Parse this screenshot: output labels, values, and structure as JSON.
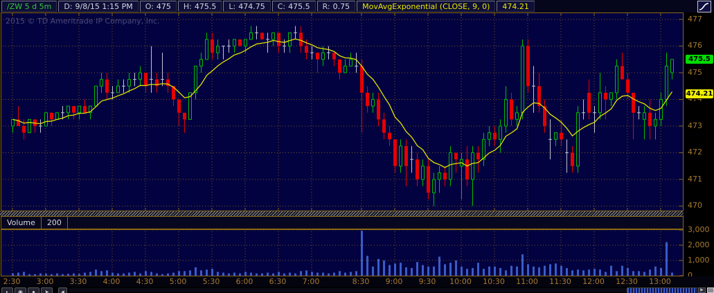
{
  "header": {
    "symbol": "/ZW 5 d 5m",
    "fields": [
      {
        "label": "D:",
        "value": "9/8/15 1:15 PM"
      },
      {
        "label": "O:",
        "value": "475"
      },
      {
        "label": "H:",
        "value": "475.5"
      },
      {
        "label": "L:",
        "value": "474.75"
      },
      {
        "label": "C:",
        "value": "475.5"
      },
      {
        "label": "R:",
        "value": "0.75"
      }
    ],
    "study": "MovAvgExponential (CLOSE, 9, 0)",
    "study_value": "474.21"
  },
  "copyright": "2015 © TD Ameritrade IP Company, Inc.",
  "price_axis": {
    "labels": [
      "477",
      "476",
      "475",
      "474",
      "473",
      "472",
      "471",
      "470"
    ],
    "last_badge": "475.5",
    "ma_badge": "474.21"
  },
  "volume_pane": {
    "label": "Volume",
    "value": "200",
    "axis_labels": [
      "3,000",
      "2,000",
      "1,000",
      "0"
    ]
  },
  "time_axis": [
    "2:30",
    "3:00",
    "3:30",
    "4:00",
    "4:30",
    "5:00",
    "5:30",
    "6:00",
    "6:30",
    "7:00",
    "8:30",
    "9:00",
    "9:30",
    "10:00",
    "10:30",
    "11:00",
    "11:30",
    "12:00",
    "12:30",
    "13:00"
  ],
  "colors": {
    "background": "#020240",
    "grid": "#9a6e10",
    "frame": "#8a6914",
    "axis_text": "#A97B2F",
    "candle_up": "#00BE00",
    "candle_down": "#E60000",
    "candle_neutral": "#C4C4D4",
    "ema_line": "#E2E200",
    "volume_bar": "#3A5CC8",
    "last_price_badge": "#00DC00",
    "ma_badge": "#F0F000",
    "symbol_text": "#33CC33"
  },
  "chart_data": {
    "type": "candlestick",
    "symbol": "/ZW",
    "interval": "5m",
    "session_break": {
      "after": "7:40",
      "resume": "8:30"
    },
    "y_axis": {
      "min": 470,
      "max": 477
    },
    "volume_axis": {
      "min": 0,
      "max": 3000
    },
    "overlays": [
      {
        "type": "ema",
        "label": "MovAvgExponential (CLOSE, 9, 0)",
        "period": 9,
        "last_value": 474.21,
        "color": "#E2E200"
      }
    ],
    "bars": [
      [
        "2:30",
        473.0,
        473.25,
        472.75,
        473.25,
        150,
        "G"
      ],
      [
        "2:35",
        473.25,
        473.75,
        473.0,
        473.0,
        200,
        "R"
      ],
      [
        "2:40",
        473.0,
        473.25,
        472.5,
        472.75,
        250,
        "R"
      ],
      [
        "2:45",
        472.75,
        473.25,
        472.75,
        473.25,
        100,
        "G"
      ],
      [
        "2:50",
        473.25,
        473.25,
        472.75,
        473.0,
        100,
        "R"
      ],
      [
        "2:55",
        473.0,
        473.25,
        472.75,
        473.0,
        150,
        "W"
      ],
      [
        "3:00",
        473.0,
        473.5,
        473.0,
        473.5,
        120,
        "G"
      ],
      [
        "3:05",
        473.5,
        473.5,
        473.0,
        473.25,
        100,
        "R"
      ],
      [
        "3:10",
        473.25,
        473.5,
        473.25,
        473.5,
        150,
        "G"
      ],
      [
        "3:15",
        473.5,
        473.75,
        473.25,
        473.5,
        100,
        "W"
      ],
      [
        "3:20",
        473.5,
        473.75,
        473.25,
        473.75,
        120,
        "G"
      ],
      [
        "3:25",
        473.75,
        473.75,
        473.25,
        473.5,
        150,
        "R"
      ],
      [
        "3:30",
        473.5,
        473.75,
        473.25,
        473.75,
        100,
        "G"
      ],
      [
        "3:35",
        473.75,
        474.0,
        473.5,
        473.5,
        200,
        "R"
      ],
      [
        "3:40",
        473.5,
        473.75,
        473.25,
        473.75,
        250,
        "G"
      ],
      [
        "3:45",
        473.75,
        474.5,
        473.75,
        474.5,
        400,
        "G"
      ],
      [
        "3:50",
        474.5,
        475.0,
        474.25,
        474.75,
        300,
        "G"
      ],
      [
        "3:55",
        474.75,
        475.0,
        474.0,
        474.25,
        350,
        "R"
      ],
      [
        "4:00",
        474.25,
        474.5,
        474.0,
        474.25,
        200,
        "W"
      ],
      [
        "4:05",
        474.25,
        474.75,
        474.25,
        474.5,
        150,
        "G"
      ],
      [
        "4:10",
        474.5,
        474.75,
        474.25,
        474.5,
        150,
        "W"
      ],
      [
        "4:15",
        474.5,
        475.0,
        474.25,
        474.75,
        200,
        "G"
      ],
      [
        "4:20",
        474.75,
        475.0,
        474.5,
        474.75,
        250,
        "W"
      ],
      [
        "4:25",
        474.75,
        475.25,
        474.5,
        475.0,
        150,
        "G"
      ],
      [
        "4:30",
        475.0,
        475.0,
        474.25,
        474.5,
        300,
        "R"
      ],
      [
        "4:35",
        474.75,
        476.0,
        474.25,
        474.75,
        250,
        "W"
      ],
      [
        "4:40",
        474.75,
        475.0,
        474.25,
        474.5,
        150,
        "R"
      ],
      [
        "4:45",
        474.75,
        475.75,
        474.5,
        474.75,
        100,
        "W"
      ],
      [
        "4:50",
        474.75,
        475.0,
        474.25,
        474.5,
        150,
        "R"
      ],
      [
        "4:55",
        474.5,
        474.5,
        473.75,
        474.0,
        200,
        "R"
      ],
      [
        "5:00",
        474.0,
        474.0,
        473.0,
        473.5,
        300,
        "R"
      ],
      [
        "5:05",
        473.5,
        473.5,
        472.75,
        473.25,
        300,
        "R"
      ],
      [
        "5:10",
        473.25,
        474.25,
        473.25,
        474.25,
        350,
        "G"
      ],
      [
        "5:15",
        474.25,
        475.25,
        474.0,
        475.25,
        550,
        "G"
      ],
      [
        "5:20",
        475.25,
        475.75,
        475.0,
        475.5,
        350,
        "G"
      ],
      [
        "5:25",
        475.5,
        476.5,
        475.5,
        476.25,
        400,
        "G"
      ],
      [
        "5:30",
        476.25,
        476.5,
        475.5,
        475.75,
        450,
        "R"
      ],
      [
        "5:35",
        475.75,
        476.25,
        475.5,
        476.0,
        250,
        "G"
      ],
      [
        "5:40",
        476.0,
        476.0,
        475.5,
        476.0,
        200,
        "W"
      ],
      [
        "5:45",
        476.0,
        476.25,
        475.75,
        476.0,
        150,
        "W"
      ],
      [
        "5:50",
        476.0,
        476.25,
        475.75,
        476.25,
        200,
        "G"
      ],
      [
        "5:55",
        476.25,
        476.25,
        476.0,
        476.0,
        150,
        "R"
      ],
      [
        "6:00",
        476.0,
        476.25,
        475.75,
        476.25,
        250,
        "G"
      ],
      [
        "6:05",
        476.25,
        476.75,
        476.25,
        476.5,
        200,
        "G"
      ],
      [
        "6:10",
        476.5,
        476.75,
        476.25,
        476.5,
        150,
        "W"
      ],
      [
        "6:15",
        476.5,
        476.5,
        476.25,
        476.25,
        150,
        "R"
      ],
      [
        "6:20",
        476.25,
        476.5,
        475.75,
        476.25,
        200,
        "W"
      ],
      [
        "6:25",
        476.25,
        476.5,
        476.0,
        476.5,
        150,
        "G"
      ],
      [
        "6:30",
        476.5,
        476.5,
        475.75,
        476.0,
        250,
        "R"
      ],
      [
        "6:35",
        476.0,
        476.25,
        475.75,
        476.0,
        150,
        "W"
      ],
      [
        "6:40",
        476.0,
        476.5,
        475.75,
        476.5,
        200,
        "G"
      ],
      [
        "6:45",
        476.5,
        476.75,
        476.25,
        476.5,
        150,
        "W"
      ],
      [
        "6:50",
        476.5,
        476.75,
        475.75,
        476.0,
        300,
        "R"
      ],
      [
        "6:55",
        476.0,
        476.25,
        475.5,
        475.75,
        350,
        "R"
      ],
      [
        "7:00",
        475.75,
        476.0,
        475.5,
        475.75,
        250,
        "W"
      ],
      [
        "7:05",
        475.75,
        475.75,
        475.0,
        475.5,
        200,
        "R"
      ],
      [
        "7:10",
        475.5,
        476.0,
        475.25,
        475.75,
        200,
        "G"
      ],
      [
        "7:15",
        475.75,
        476.0,
        475.5,
        475.75,
        150,
        "W"
      ],
      [
        "7:20",
        475.75,
        475.75,
        475.25,
        475.5,
        200,
        "R"
      ],
      [
        "7:25",
        475.5,
        475.5,
        474.75,
        475.0,
        300,
        "R"
      ],
      [
        "7:30",
        475.0,
        475.5,
        475.0,
        475.25,
        200,
        "G"
      ],
      [
        "7:35",
        475.25,
        475.75,
        475.25,
        475.5,
        250,
        "G"
      ],
      [
        "7:40",
        475.25,
        475.75,
        475.0,
        475.25,
        300,
        "W"
      ],
      [
        "8:30",
        475.25,
        475.5,
        472.75,
        474.25,
        2950,
        "R"
      ],
      [
        "8:35",
        474.25,
        474.5,
        473.5,
        473.75,
        1300,
        "R"
      ],
      [
        "8:40",
        473.75,
        474.25,
        473.5,
        474.0,
        600,
        "G"
      ],
      [
        "8:45",
        474.0,
        474.25,
        473.0,
        473.25,
        1100,
        "R"
      ],
      [
        "8:50",
        473.25,
        473.5,
        472.5,
        472.75,
        1000,
        "R"
      ],
      [
        "8:55",
        472.75,
        473.0,
        472.25,
        472.5,
        700,
        "R"
      ],
      [
        "9:00",
        472.5,
        472.5,
        471.25,
        471.5,
        800,
        "R"
      ],
      [
        "9:05",
        471.5,
        472.5,
        471.25,
        472.25,
        850,
        "G"
      ],
      [
        "9:10",
        472.25,
        472.5,
        470.75,
        471.5,
        550,
        "R"
      ],
      [
        "9:15",
        471.75,
        472.25,
        471.25,
        471.75,
        500,
        "W"
      ],
      [
        "9:20",
        471.75,
        472.0,
        470.75,
        471.0,
        900,
        "R"
      ],
      [
        "9:25",
        471.0,
        471.75,
        470.75,
        471.5,
        700,
        "G"
      ],
      [
        "9:30",
        471.5,
        471.75,
        470.25,
        470.5,
        600,
        "R"
      ],
      [
        "9:35",
        470.5,
        471.25,
        470.0,
        471.0,
        600,
        "G"
      ],
      [
        "9:40",
        471.0,
        471.5,
        470.5,
        471.25,
        1250,
        "G"
      ],
      [
        "9:45",
        471.25,
        471.5,
        470.75,
        471.0,
        750,
        "R"
      ],
      [
        "9:50",
        471.0,
        472.25,
        470.75,
        472.0,
        850,
        "G"
      ],
      [
        "9:55",
        472.0,
        472.0,
        471.25,
        471.75,
        1000,
        "R"
      ],
      [
        "10:00",
        471.5,
        472.0,
        470.25,
        471.75,
        600,
        "G"
      ],
      [
        "10:05",
        471.75,
        472.25,
        470.75,
        471.0,
        450,
        "R"
      ],
      [
        "10:10",
        471.0,
        472.25,
        470.0,
        472.0,
        500,
        "G"
      ],
      [
        "10:15",
        472.0,
        472.25,
        471.25,
        471.75,
        850,
        "R"
      ],
      [
        "10:20",
        471.75,
        472.75,
        471.5,
        472.5,
        450,
        "G"
      ],
      [
        "10:25",
        472.5,
        473.0,
        472.25,
        472.75,
        600,
        "G"
      ],
      [
        "10:30",
        472.75,
        473.0,
        472.25,
        472.5,
        600,
        "R"
      ],
      [
        "10:35",
        472.5,
        473.25,
        472.0,
        473.0,
        500,
        "G"
      ],
      [
        "10:40",
        473.0,
        474.5,
        472.75,
        474.0,
        350,
        "G"
      ],
      [
        "10:45",
        474.0,
        474.25,
        473.0,
        473.25,
        650,
        "R"
      ],
      [
        "10:50",
        473.25,
        473.75,
        473.0,
        473.5,
        600,
        "G"
      ],
      [
        "10:55",
        473.5,
        476.25,
        473.25,
        476.0,
        1400,
        "G"
      ],
      [
        "11:00",
        476.0,
        476.25,
        474.25,
        474.5,
        750,
        "R"
      ],
      [
        "11:05",
        474.5,
        475.25,
        473.5,
        474.5,
        600,
        "W"
      ],
      [
        "11:10",
        474.5,
        475.0,
        473.5,
        473.75,
        550,
        "R"
      ],
      [
        "11:15",
        473.75,
        474.0,
        472.75,
        473.0,
        650,
        "R"
      ],
      [
        "11:20",
        472.5,
        473.25,
        471.75,
        472.5,
        750,
        "W"
      ],
      [
        "11:25",
        472.5,
        472.75,
        472.25,
        472.75,
        800,
        "G"
      ],
      [
        "11:30",
        472.75,
        473.25,
        472.25,
        472.5,
        650,
        "R"
      ],
      [
        "11:35",
        472.0,
        472.5,
        471.25,
        472.0,
        500,
        "W"
      ],
      [
        "11:40",
        472.0,
        472.25,
        471.25,
        471.5,
        350,
        "R"
      ],
      [
        "11:45",
        471.5,
        473.75,
        471.25,
        473.5,
        400,
        "G"
      ],
      [
        "11:50",
        473.5,
        474.0,
        473.25,
        473.5,
        350,
        "W"
      ],
      [
        "11:55",
        474.25,
        474.75,
        473.25,
        473.5,
        400,
        "R"
      ],
      [
        "12:00",
        473.5,
        473.75,
        472.75,
        473.5,
        450,
        "W"
      ],
      [
        "12:05",
        473.5,
        475.0,
        473.25,
        474.25,
        400,
        "G"
      ],
      [
        "12:10",
        474.25,
        474.5,
        473.25,
        474.0,
        250,
        "R"
      ],
      [
        "12:15",
        474.0,
        474.25,
        473.75,
        474.25,
        650,
        "G"
      ],
      [
        "12:20",
        474.25,
        475.5,
        474.0,
        475.25,
        300,
        "G"
      ],
      [
        "12:25",
        475.25,
        475.75,
        474.75,
        474.75,
        650,
        "R"
      ],
      [
        "12:30",
        474.75,
        475.0,
        474.0,
        474.25,
        500,
        "R"
      ],
      [
        "12:35",
        474.25,
        474.25,
        472.5,
        473.5,
        300,
        "R"
      ],
      [
        "12:40",
        473.5,
        473.75,
        473.25,
        473.5,
        300,
        "W"
      ],
      [
        "12:45",
        473.25,
        473.75,
        472.5,
        473.5,
        250,
        "G"
      ],
      [
        "12:50",
        473.5,
        474.0,
        472.5,
        473.0,
        400,
        "R"
      ],
      [
        "12:55",
        473.0,
        473.5,
        472.5,
        473.25,
        600,
        "G"
      ],
      [
        "13:00",
        473.25,
        474.25,
        473.0,
        474.0,
        500,
        "G"
      ],
      [
        "13:05",
        474.0,
        475.75,
        473.75,
        475.25,
        2200,
        "G"
      ],
      [
        "13:10",
        475.0,
        475.5,
        474.75,
        475.5,
        200,
        "G"
      ]
    ]
  }
}
